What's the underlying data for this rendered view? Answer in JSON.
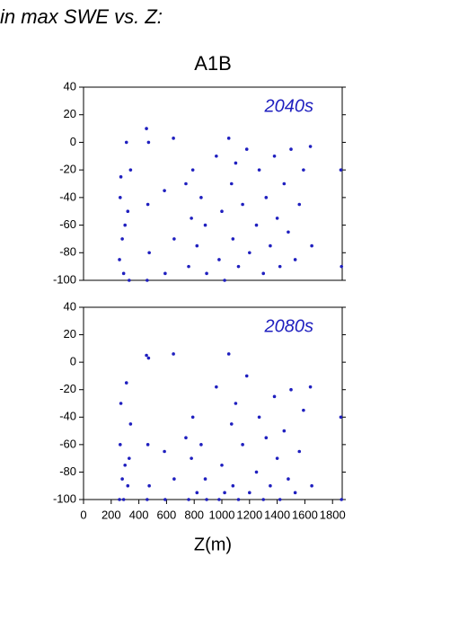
{
  "heading": "in max SWE vs. Z:",
  "chart_data": [
    {
      "type": "scatter",
      "title": "A1B",
      "annotation": "2040s",
      "color": "#1f1fbf",
      "x": [
        260,
        265,
        270,
        280,
        290,
        300,
        310,
        320,
        330,
        340,
        455,
        460,
        465,
        470,
        475,
        585,
        590,
        650,
        655,
        740,
        760,
        780,
        790,
        820,
        850,
        880,
        890,
        960,
        980,
        1000,
        1020,
        1050,
        1070,
        1080,
        1100,
        1120,
        1150,
        1180,
        1200,
        1250,
        1270,
        1300,
        1320,
        1350,
        1380,
        1400,
        1420,
        1450,
        1480,
        1500,
        1530,
        1560,
        1590,
        1640,
        1650,
        1860,
        1865
      ],
      "values": [
        -85,
        -40,
        -25,
        -70,
        -95,
        -60,
        0,
        -50,
        -100,
        -20,
        10,
        -100,
        -45,
        0,
        -80,
        -35,
        -95,
        3,
        -70,
        -30,
        -90,
        -55,
        -20,
        -75,
        -40,
        -60,
        -95,
        -10,
        -85,
        -50,
        -100,
        3,
        -30,
        -70,
        -15,
        -90,
        -45,
        -5,
        -80,
        -60,
        -20,
        -95,
        -40,
        -75,
        -10,
        -55,
        -90,
        -30,
        -65,
        -5,
        -85,
        -45,
        -20,
        -3,
        -75,
        -20,
        -90
      ],
      "xlim": [
        0,
        1870
      ],
      "ylim": [
        -100,
        40
      ],
      "yticks": [
        -100,
        -80,
        -60,
        -40,
        -20,
        0,
        20,
        40
      ]
    },
    {
      "type": "scatter",
      "annotation": "2080s",
      "xlabel": "Z(m)",
      "color": "#1f1fbf",
      "x": [
        260,
        265,
        270,
        280,
        290,
        300,
        310,
        320,
        330,
        340,
        455,
        460,
        465,
        470,
        475,
        585,
        590,
        650,
        655,
        740,
        760,
        780,
        790,
        820,
        850,
        880,
        890,
        960,
        980,
        1000,
        1020,
        1050,
        1070,
        1080,
        1100,
        1120,
        1150,
        1180,
        1200,
        1250,
        1270,
        1300,
        1320,
        1350,
        1380,
        1400,
        1420,
        1450,
        1480,
        1500,
        1530,
        1560,
        1590,
        1640,
        1650,
        1860,
        1865
      ],
      "values": [
        -100,
        -60,
        -30,
        -85,
        -100,
        -75,
        -15,
        -90,
        -70,
        -45,
        5,
        -100,
        -60,
        3,
        -90,
        -65,
        -100,
        6,
        -85,
        -55,
        -100,
        -70,
        -40,
        -95,
        -60,
        -85,
        -100,
        -18,
        -100,
        -75,
        -95,
        6,
        -45,
        -90,
        -30,
        -100,
        -60,
        -10,
        -95,
        -80,
        -40,
        -100,
        -55,
        -90,
        -25,
        -70,
        -100,
        -50,
        -85,
        -20,
        -95,
        -65,
        -35,
        -18,
        -90,
        -40,
        -100
      ],
      "xlim": [
        0,
        1870
      ],
      "ylim": [
        -100,
        40
      ],
      "yticks": [
        -100,
        -80,
        -60,
        -40,
        -20,
        0,
        20,
        40
      ],
      "xticks": [
        0,
        200,
        400,
        600,
        800,
        1000,
        1200,
        1400,
        1600,
        1800
      ]
    }
  ]
}
